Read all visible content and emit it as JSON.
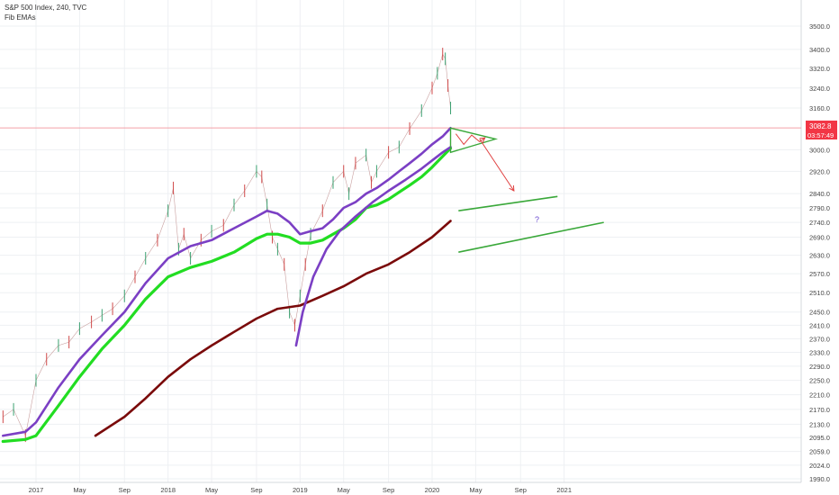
{
  "header": {
    "symbol_line": "S&P 500 Index, 240, TVC",
    "indicator_name": "Fib EMAs"
  },
  "price_tag": {
    "price": "3082.8",
    "countdown": "03:57:49",
    "color": "#f23645"
  },
  "annotation": {
    "question_mark": "?"
  },
  "chart_data": {
    "type": "line",
    "title": "S&P 500 Index, 240, TVC",
    "xlabel": "",
    "ylabel": "",
    "x_tick_labels": [
      "2017",
      "May",
      "Sep",
      "2018",
      "May",
      "Sep",
      "2019",
      "May",
      "Sep",
      "2020",
      "May",
      "Sep",
      "2021"
    ],
    "x_tick_values": [
      2017.0,
      2017.33,
      2017.67,
      2018.0,
      2018.33,
      2018.67,
      2019.0,
      2019.33,
      2019.67,
      2020.0,
      2020.33,
      2020.67,
      2021.0
    ],
    "y_scale": "log",
    "ylim": [
      1970,
      3700
    ],
    "y_ticks": [
      3500,
      3400,
      3320,
      3240,
      3160,
      3000,
      2920,
      2840,
      2790,
      2740,
      2690,
      2630,
      2570,
      2510,
      2450,
      2410,
      2370,
      2330,
      2290,
      2250,
      2210,
      2170,
      2130,
      2095,
      2059,
      2024,
      1990
    ],
    "grid": true,
    "current_price": 3082.8,
    "horizontal_line": 3082.8,
    "series": [
      {
        "name": "Fib EMAs",
        "color": "#7b3fc4",
        "x": [
          2016.75,
          2016.92,
          2017.0,
          2017.17,
          2017.33,
          2017.5,
          2017.67,
          2017.83,
          2018.0,
          2018.17,
          2018.33,
          2018.5,
          2018.67,
          2018.75,
          2018.83,
          2018.92,
          2019.0,
          2019.08,
          2019.17,
          2019.25,
          2019.33,
          2019.42,
          2019.5,
          2019.58,
          2019.67,
          2019.75,
          2019.83,
          2019.92,
          2020.0,
          2020.08,
          2020.14
        ],
        "y": [
          2100,
          2110,
          2135,
          2230,
          2310,
          2380,
          2450,
          2540,
          2620,
          2660,
          2680,
          2720,
          2760,
          2780,
          2770,
          2740,
          2700,
          2710,
          2720,
          2750,
          2790,
          2810,
          2840,
          2860,
          2890,
          2920,
          2950,
          2985,
          3020,
          3050,
          3082
        ]
      },
      {
        "name": "Fib EMAs",
        "color": "#22dd22",
        "x": [
          2016.75,
          2016.92,
          2017.0,
          2017.17,
          2017.33,
          2017.5,
          2017.67,
          2017.83,
          2018.0,
          2018.17,
          2018.33,
          2018.5,
          2018.67,
          2018.75,
          2018.83,
          2018.92,
          2019.0,
          2019.08,
          2019.17,
          2019.25,
          2019.33,
          2019.42,
          2019.5,
          2019.58,
          2019.67,
          2019.75,
          2019.83,
          2019.92,
          2020.0,
          2020.08,
          2020.14
        ],
        "y": [
          2085,
          2090,
          2100,
          2180,
          2260,
          2340,
          2410,
          2490,
          2560,
          2590,
          2610,
          2640,
          2685,
          2700,
          2700,
          2690,
          2670,
          2670,
          2680,
          2700,
          2720,
          2750,
          2790,
          2800,
          2820,
          2845,
          2870,
          2900,
          2935,
          2975,
          3005
        ]
      },
      {
        "name": "Fib EMAs",
        "color": "#7a0a0a",
        "x": [
          2017.45,
          2017.67,
          2017.83,
          2018.0,
          2018.17,
          2018.33,
          2018.5,
          2018.67,
          2018.83,
          2019.0,
          2019.17,
          2019.33,
          2019.5,
          2019.67,
          2019.83,
          2020.0,
          2020.14
        ],
        "y": [
          2100,
          2150,
          2200,
          2260,
          2310,
          2350,
          2390,
          2430,
          2460,
          2470,
          2500,
          2530,
          2570,
          2600,
          2640,
          2690,
          2745
        ]
      },
      {
        "name": "",
        "color": "#7b3fc4",
        "x": [
          2018.97,
          2019.02,
          2019.1,
          2019.2,
          2019.3,
          2019.42,
          2019.55,
          2019.67,
          2019.8,
          2019.92,
          2020.0,
          2020.08,
          2020.14
        ],
        "y": [
          2350,
          2450,
          2560,
          2650,
          2710,
          2760,
          2810,
          2850,
          2890,
          2930,
          2960,
          2990,
          3010
        ]
      }
    ],
    "price_bars": {
      "color": "#d04a4a",
      "x": [
        2016.75,
        2016.83,
        2016.92,
        2017.0,
        2017.08,
        2017.17,
        2017.25,
        2017.33,
        2017.42,
        2017.5,
        2017.58,
        2017.67,
        2017.75,
        2017.83,
        2017.92,
        2018.0,
        2018.04,
        2018.08,
        2018.12,
        2018.17,
        2018.25,
        2018.33,
        2018.42,
        2018.5,
        2018.58,
        2018.67,
        2018.71,
        2018.75,
        2018.79,
        2018.83,
        2018.88,
        2018.92,
        2018.96,
        2019.0,
        2019.04,
        2019.08,
        2019.17,
        2019.25,
        2019.33,
        2019.37,
        2019.42,
        2019.5,
        2019.54,
        2019.58,
        2019.67,
        2019.75,
        2019.83,
        2019.92,
        2020.0,
        2020.04,
        2020.08,
        2020.1,
        2020.12,
        2020.14
      ],
      "y": [
        2150,
        2170,
        2100,
        2250,
        2310,
        2350,
        2360,
        2400,
        2420,
        2440,
        2460,
        2500,
        2560,
        2620,
        2680,
        2780,
        2860,
        2650,
        2700,
        2620,
        2680,
        2710,
        2730,
        2800,
        2850,
        2920,
        2900,
        2800,
        2690,
        2650,
        2600,
        2450,
        2410,
        2500,
        2600,
        2700,
        2780,
        2880,
        2920,
        2840,
        2950,
        2980,
        2880,
        2920,
        2990,
        3010,
        3080,
        3150,
        3240,
        3300,
        3380,
        3360,
        3250,
        3160
      ]
    },
    "drawings": [
      {
        "type": "triangle",
        "color": "#3aa83a",
        "points": [
          [
            2020.14,
            3082
          ],
          [
            2020.48,
            3040
          ],
          [
            2020.14,
            2990
          ]
        ]
      },
      {
        "type": "arrow-path",
        "color": "#e04040",
        "points": [
          [
            2020.18,
            3060
          ],
          [
            2020.24,
            3020
          ],
          [
            2020.3,
            3055
          ],
          [
            2020.36,
            3030
          ],
          [
            2020.4,
            3045
          ]
        ]
      },
      {
        "type": "arrow",
        "color": "#e04040",
        "points": [
          [
            2020.36,
            3040
          ],
          [
            2020.62,
            2850
          ]
        ]
      },
      {
        "type": "trend-line",
        "color": "#3aa83a",
        "points": [
          [
            2020.2,
            2780
          ],
          [
            2020.95,
            2830
          ]
        ]
      },
      {
        "type": "trend-line",
        "color": "#3aa83a",
        "points": [
          [
            2020.2,
            2640
          ],
          [
            2021.3,
            2740
          ]
        ]
      }
    ]
  }
}
